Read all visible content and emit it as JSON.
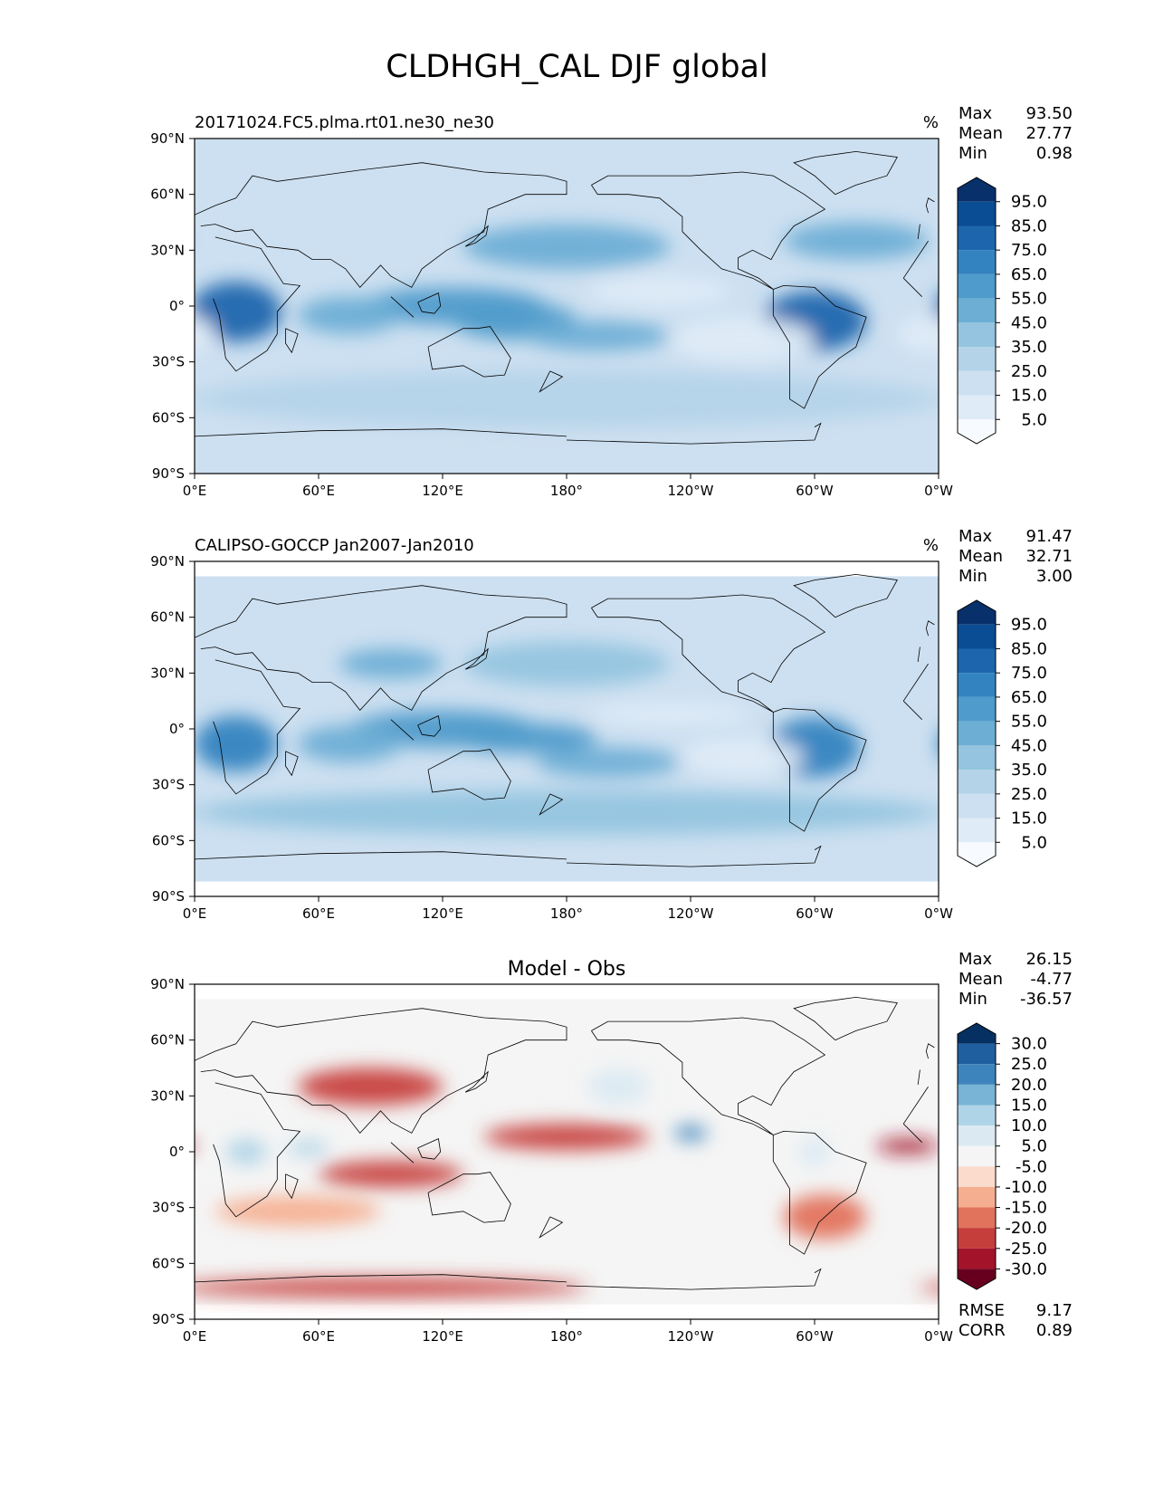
{
  "figure": {
    "title": "CLDHGH_CAL DJF global"
  },
  "chart_data": [
    {
      "type": "heatmap",
      "panel": "test",
      "title_left": "20171024.FC5.plma.rt01.ne30_ne30",
      "title_center": "",
      "units": "%",
      "stats": [
        {
          "label": "Max",
          "value": "93.50"
        },
        {
          "label": "Mean",
          "value": "27.77"
        },
        {
          "label": "Min",
          "value": "0.98"
        }
      ],
      "colorbar": {
        "levels": [
          "95.0",
          "85.0",
          "75.0",
          "65.0",
          "55.0",
          "45.0",
          "35.0",
          "25.0",
          "15.0",
          "5.0"
        ],
        "colors": [
          "#08306b",
          "#0b4d94",
          "#1d66ad",
          "#3383c0",
          "#4f9bcb",
          "#6daed5",
          "#94c4df",
          "#b4d3e9",
          "#cde0f1",
          "#dfebf7",
          "#f7fbff"
        ]
      },
      "xticks": [
        "0°E",
        "60°E",
        "120°E",
        "180°",
        "120°W",
        "60°W",
        "0°W"
      ],
      "yticks": [
        "90°N",
        "60°N",
        "30°N",
        "0°",
        "30°S",
        "60°S",
        "90°S"
      ],
      "xlim": [
        0,
        360
      ],
      "ylim": [
        -90,
        90
      ],
      "features": [
        {
          "name": "africa",
          "lon": 20,
          "lat": -3,
          "rx": 22,
          "ry": 16,
          "value": 80
        },
        {
          "name": "maritime-continent",
          "lon": 125,
          "lat": 0,
          "rx": 45,
          "ry": 10,
          "value": 60
        },
        {
          "name": "west-pacific",
          "lon": 155,
          "lat": -8,
          "rx": 30,
          "ry": 10,
          "value": 55
        },
        {
          "name": "spcz",
          "lon": 195,
          "lat": -16,
          "rx": 35,
          "ry": 8,
          "value": 45
        },
        {
          "name": "amazon",
          "lon": 300,
          "lat": -8,
          "rx": 25,
          "ry": 16,
          "value": 75
        },
        {
          "name": "indian-ocean",
          "lon": 75,
          "lat": -5,
          "rx": 25,
          "ry": 10,
          "value": 45
        },
        {
          "name": "north-pacific-storm",
          "lon": 180,
          "lat": 32,
          "rx": 50,
          "ry": 12,
          "value": 45
        },
        {
          "name": "north-atlantic-storm",
          "lon": 320,
          "lat": 35,
          "rx": 35,
          "ry": 10,
          "value": 45
        },
        {
          "name": "southern-ocean",
          "lon": 180,
          "lat": -50,
          "rx": 180,
          "ry": 15,
          "value": 30
        },
        {
          "name": "se-pacific-clear",
          "lon": 265,
          "lat": -18,
          "rx": 35,
          "ry": 12,
          "value": 6
        },
        {
          "name": "se-atlantic-clear",
          "lon": 355,
          "lat": -15,
          "rx": 15,
          "ry": 10,
          "value": 8
        },
        {
          "name": "e-pacific-clear",
          "lon": 225,
          "lat": 8,
          "rx": 35,
          "ry": 8,
          "value": 8
        }
      ]
    },
    {
      "type": "heatmap",
      "panel": "reference",
      "title_left": "CALIPSO-GOCCP Jan2007-Jan2010",
      "title_center": "",
      "units": "%",
      "stats": [
        {
          "label": "Max",
          "value": "91.47"
        },
        {
          "label": "Mean",
          "value": "32.71"
        },
        {
          "label": "Min",
          "value": "3.00"
        }
      ],
      "colorbar": {
        "levels": [
          "95.0",
          "85.0",
          "75.0",
          "65.0",
          "55.0",
          "45.0",
          "35.0",
          "25.0",
          "15.0",
          "5.0"
        ],
        "colors": [
          "#08306b",
          "#0b4d94",
          "#1d66ad",
          "#3383c0",
          "#4f9bcb",
          "#6daed5",
          "#94c4df",
          "#b4d3e9",
          "#cde0f1",
          "#dfebf7",
          "#f7fbff"
        ]
      },
      "xticks": [
        "0°E",
        "60°E",
        "120°E",
        "180°",
        "120°W",
        "60°W",
        "0°W"
      ],
      "yticks": [
        "90°N",
        "60°N",
        "30°N",
        "0°",
        "30°S",
        "60°S",
        "90°S"
      ],
      "xlim": [
        0,
        360
      ],
      "ylim": [
        -90,
        90
      ],
      "data_lat_range": [
        -82,
        82
      ],
      "features": [
        {
          "name": "africa",
          "lon": 20,
          "lat": -8,
          "rx": 20,
          "ry": 15,
          "value": 70
        },
        {
          "name": "maritime-continent",
          "lon": 120,
          "lat": 0,
          "rx": 45,
          "ry": 10,
          "value": 60
        },
        {
          "name": "west-pacific",
          "lon": 160,
          "lat": -5,
          "rx": 35,
          "ry": 8,
          "value": 55
        },
        {
          "name": "spcz",
          "lon": 200,
          "lat": -18,
          "rx": 35,
          "ry": 8,
          "value": 45
        },
        {
          "name": "amazon",
          "lon": 300,
          "lat": -10,
          "rx": 22,
          "ry": 16,
          "value": 70
        },
        {
          "name": "indian-ocean",
          "lon": 75,
          "lat": -8,
          "rx": 25,
          "ry": 10,
          "value": 45
        },
        {
          "name": "tibet",
          "lon": 95,
          "lat": 35,
          "rx": 25,
          "ry": 8,
          "value": 50
        },
        {
          "name": "north-pacific",
          "lon": 180,
          "lat": 35,
          "rx": 50,
          "ry": 12,
          "value": 35
        },
        {
          "name": "southern-ocean",
          "lon": 180,
          "lat": -45,
          "rx": 180,
          "ry": 12,
          "value": 35
        },
        {
          "name": "se-pacific-clear",
          "lon": 265,
          "lat": -15,
          "rx": 30,
          "ry": 10,
          "value": 10
        },
        {
          "name": "e-pacific-clear",
          "lon": 230,
          "lat": 8,
          "rx": 40,
          "ry": 6,
          "value": 12
        }
      ]
    },
    {
      "type": "heatmap",
      "panel": "difference",
      "title_left": "",
      "title_center": "Model - Obs",
      "units": "",
      "stats": [
        {
          "label": "Max",
          "value": "26.15"
        },
        {
          "label": "Mean",
          "value": "-4.77"
        },
        {
          "label": "Min",
          "value": "-36.57"
        }
      ],
      "metrics": [
        {
          "label": "RMSE",
          "value": "9.17"
        },
        {
          "label": "CORR",
          "value": "0.89"
        }
      ],
      "colorbar": {
        "levels": [
          "30.0",
          "25.0",
          "20.0",
          "15.0",
          "10.0",
          "5.0",
          "-5.0",
          "-10.0",
          "-15.0",
          "-20.0",
          "-25.0",
          "-30.0"
        ],
        "colors": [
          "#053061",
          "#1f5f9f",
          "#3e84bc",
          "#79b3d5",
          "#b0d4e7",
          "#dbeaf2",
          "#f5f5f5",
          "#fbdbcb",
          "#f5ae8f",
          "#e1735c",
          "#c63e3c",
          "#a3142b",
          "#67001f"
        ]
      },
      "xticks": [
        "0°E",
        "60°E",
        "120°E",
        "180°",
        "120°W",
        "60°W",
        "0°W"
      ],
      "yticks": [
        "90°N",
        "60°N",
        "30°N",
        "0°",
        "30°S",
        "60°S",
        "90°S"
      ],
      "xlim": [
        0,
        360
      ],
      "ylim": [
        -90,
        90
      ],
      "data_lat_range": [
        -82,
        82
      ],
      "features": [
        {
          "name": "asia-dry-band",
          "lon": 85,
          "lat": 35,
          "rx": 35,
          "ry": 10,
          "value": -22
        },
        {
          "name": "indian-ocean-dry",
          "lon": 95,
          "lat": -12,
          "rx": 35,
          "ry": 7,
          "value": -20
        },
        {
          "name": "central-pacific-dry",
          "lon": 180,
          "lat": 8,
          "rx": 40,
          "ry": 7,
          "value": -20
        },
        {
          "name": "atlantic-itcz-dry",
          "lon": 345,
          "lat": 3,
          "rx": 15,
          "ry": 4,
          "value": -28
        },
        {
          "name": "southern-ocean-dry",
          "lon": 90,
          "lat": -73,
          "rx": 100,
          "ry": 5,
          "value": -20
        },
        {
          "name": "southern-midlat-dry",
          "lon": 50,
          "lat": -32,
          "rx": 40,
          "ry": 8,
          "value": -12
        },
        {
          "name": "s-america-dry",
          "lon": 305,
          "lat": -35,
          "rx": 20,
          "ry": 12,
          "value": -15
        },
        {
          "name": "africa-wet",
          "lon": 25,
          "lat": 0,
          "rx": 10,
          "ry": 7,
          "value": 10
        },
        {
          "name": "arabian-sea-wet",
          "lon": 55,
          "lat": 2,
          "rx": 10,
          "ry": 4,
          "value": 10
        },
        {
          "name": "e-pacific-wet",
          "lon": 240,
          "lat": 10,
          "rx": 8,
          "ry": 4,
          "value": 20
        },
        {
          "name": "n-pacific-wet",
          "lon": 205,
          "lat": 35,
          "rx": 15,
          "ry": 10,
          "value": 8
        },
        {
          "name": "amazon-wet",
          "lon": 300,
          "lat": 0,
          "rx": 8,
          "ry": 8,
          "value": 8
        }
      ]
    }
  ]
}
